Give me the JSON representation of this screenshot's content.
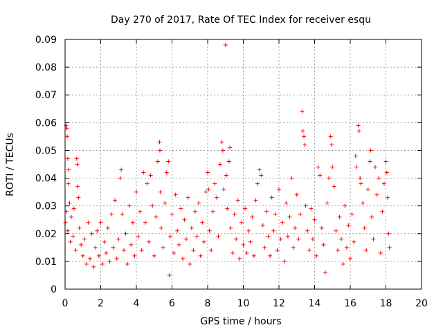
{
  "chart_data": {
    "type": "scatter",
    "title": "Day 270 of 2017, Rate Of TEC Index for receiver esqu",
    "xlabel": "GPS time / hours",
    "ylabel": "ROTI / TECUs",
    "xlim": [
      0,
      20
    ],
    "ylim": [
      0,
      0.09
    ],
    "x_ticks": [
      0,
      2,
      4,
      6,
      8,
      10,
      12,
      14,
      16,
      18,
      20
    ],
    "x_tick_labels": [
      "0",
      "2",
      "4",
      "6",
      "8",
      "10",
      "12",
      "14",
      "16",
      "18",
      "20"
    ],
    "y_ticks": [
      0,
      0.01,
      0.02,
      0.03,
      0.04,
      0.05,
      0.06,
      0.07,
      0.08,
      0.09
    ],
    "y_tick_labels": [
      "0",
      "0.01",
      "0.02",
      "0.03",
      "0.04",
      "0.05",
      "0.06",
      "0.07",
      "0.08",
      "0.09"
    ],
    "grid": true,
    "marker": "+",
    "marker_color": "#ff0000",
    "series": [
      {
        "name": "ROTI",
        "points": [
          [
            0.05,
            0.059
          ],
          [
            0.1,
            0.058
          ],
          [
            0.12,
            0.055
          ],
          [
            0.15,
            0.047
          ],
          [
            0.2,
            0.043
          ],
          [
            0.18,
            0.038
          ],
          [
            0.02,
            0.024
          ],
          [
            0.08,
            0.028
          ],
          [
            0.15,
            0.021
          ],
          [
            0.25,
            0.031
          ],
          [
            0.3,
            0.017
          ],
          [
            0.35,
            0.026
          ],
          [
            0.45,
            0.019
          ],
          [
            0.5,
            0.029
          ],
          [
            0.6,
            0.014
          ],
          [
            0.65,
            0.047
          ],
          [
            0.68,
            0.045
          ],
          [
            0.7,
            0.037
          ],
          [
            0.75,
            0.033
          ],
          [
            0.8,
            0.022
          ],
          [
            0.9,
            0.016
          ],
          [
            1.0,
            0.012
          ],
          [
            1.1,
            0.018
          ],
          [
            1.2,
            0.009
          ],
          [
            1.3,
            0.024
          ],
          [
            1.4,
            0.011
          ],
          [
            1.5,
            0.02
          ],
          [
            1.6,
            0.008
          ],
          [
            1.7,
            0.015
          ],
          [
            1.8,
            0.021
          ],
          [
            1.9,
            0.012
          ],
          [
            2.0,
            0.024
          ],
          [
            2.1,
            0.009
          ],
          [
            2.2,
            0.017
          ],
          [
            2.3,
            0.013
          ],
          [
            2.4,
            0.022
          ],
          [
            2.5,
            0.01
          ],
          [
            2.6,
            0.027
          ],
          [
            2.7,
            0.015
          ],
          [
            2.8,
            0.032
          ],
          [
            2.9,
            0.011
          ],
          [
            3.0,
            0.018
          ],
          [
            3.1,
            0.04
          ],
          [
            3.15,
            0.043
          ],
          [
            3.2,
            0.027
          ],
          [
            3.3,
            0.014
          ],
          [
            3.4,
            0.02
          ],
          [
            3.5,
            0.009
          ],
          [
            3.6,
            0.03
          ],
          [
            3.7,
            0.016
          ],
          [
            3.8,
            0.024
          ],
          [
            3.9,
            0.012
          ],
          [
            4.0,
            0.035
          ],
          [
            4.1,
            0.019
          ],
          [
            4.2,
            0.028
          ],
          [
            4.3,
            0.014
          ],
          [
            4.4,
            0.042
          ],
          [
            4.5,
            0.024
          ],
          [
            4.6,
            0.038
          ],
          [
            4.7,
            0.017
          ],
          [
            4.8,
            0.041
          ],
          [
            4.9,
            0.03
          ],
          [
            5.0,
            0.012
          ],
          [
            5.1,
            0.026
          ],
          [
            5.2,
            0.046
          ],
          [
            5.3,
            0.053
          ],
          [
            5.32,
            0.05
          ],
          [
            5.35,
            0.035
          ],
          [
            5.4,
            0.022
          ],
          [
            5.5,
            0.015
          ],
          [
            5.6,
            0.031
          ],
          [
            5.7,
            0.042
          ],
          [
            5.8,
            0.046
          ],
          [
            5.85,
            0.005
          ],
          [
            5.9,
            0.019
          ],
          [
            6.0,
            0.027
          ],
          [
            6.1,
            0.013
          ],
          [
            6.2,
            0.034
          ],
          [
            6.3,
            0.021
          ],
          [
            6.4,
            0.016
          ],
          [
            6.5,
            0.029
          ],
          [
            6.6,
            0.011
          ],
          [
            6.7,
            0.025
          ],
          [
            6.8,
            0.018
          ],
          [
            6.9,
            0.033
          ],
          [
            7.0,
            0.009
          ],
          [
            7.1,
            0.022
          ],
          [
            7.2,
            0.014
          ],
          [
            7.3,
            0.028
          ],
          [
            7.4,
            0.019
          ],
          [
            7.5,
            0.031
          ],
          [
            7.6,
            0.012
          ],
          [
            7.7,
            0.024
          ],
          [
            7.8,
            0.017
          ],
          [
            7.9,
            0.035
          ],
          [
            8.0,
            0.042
          ],
          [
            8.05,
            0.036
          ],
          [
            8.1,
            0.021
          ],
          [
            8.2,
            0.014
          ],
          [
            8.3,
            0.028
          ],
          [
            8.4,
            0.038
          ],
          [
            8.5,
            0.033
          ],
          [
            8.6,
            0.019
          ],
          [
            8.7,
            0.045
          ],
          [
            8.8,
            0.053
          ],
          [
            8.85,
            0.05
          ],
          [
            8.9,
            0.036
          ],
          [
            9.0,
            0.088
          ],
          [
            9.05,
            0.041
          ],
          [
            9.1,
            0.029
          ],
          [
            9.2,
            0.046
          ],
          [
            9.25,
            0.051
          ],
          [
            9.3,
            0.022
          ],
          [
            9.4,
            0.013
          ],
          [
            9.5,
            0.027
          ],
          [
            9.6,
            0.018
          ],
          [
            9.7,
            0.032
          ],
          [
            9.8,
            0.011
          ],
          [
            9.9,
            0.024
          ],
          [
            10.0,
            0.016
          ],
          [
            10.1,
            0.029
          ],
          [
            10.2,
            0.013
          ],
          [
            10.3,
            0.021
          ],
          [
            10.4,
            0.017
          ],
          [
            10.5,
            0.026
          ],
          [
            10.6,
            0.012
          ],
          [
            10.7,
            0.032
          ],
          [
            10.8,
            0.038
          ],
          [
            10.9,
            0.043
          ],
          [
            11.0,
            0.041
          ],
          [
            11.1,
            0.023
          ],
          [
            11.2,
            0.015
          ],
          [
            11.3,
            0.028
          ],
          [
            11.4,
            0.019
          ],
          [
            11.5,
            0.012
          ],
          [
            11.6,
            0.033
          ],
          [
            11.7,
            0.021
          ],
          [
            11.8,
            0.027
          ],
          [
            11.9,
            0.014
          ],
          [
            12.0,
            0.036
          ],
          [
            12.1,
            0.018
          ],
          [
            12.2,
            0.024
          ],
          [
            12.3,
            0.01
          ],
          [
            12.4,
            0.031
          ],
          [
            12.5,
            0.019
          ],
          [
            12.6,
            0.026
          ],
          [
            12.7,
            0.04
          ],
          [
            12.8,
            0.015
          ],
          [
            12.9,
            0.022
          ],
          [
            13.0,
            0.034
          ],
          [
            13.1,
            0.018
          ],
          [
            13.2,
            0.027
          ],
          [
            13.3,
            0.064
          ],
          [
            13.35,
            0.057
          ],
          [
            13.4,
            0.055
          ],
          [
            13.45,
            0.052
          ],
          [
            13.5,
            0.03
          ],
          [
            13.6,
            0.021
          ],
          [
            13.7,
            0.014
          ],
          [
            13.8,
            0.029
          ],
          [
            13.9,
            0.018
          ],
          [
            14.0,
            0.025
          ],
          [
            14.1,
            0.012
          ],
          [
            14.2,
            0.044
          ],
          [
            14.3,
            0.041
          ],
          [
            14.4,
            0.022
          ],
          [
            14.5,
            0.016
          ],
          [
            14.6,
            0.006
          ],
          [
            14.7,
            0.031
          ],
          [
            14.8,
            0.04
          ],
          [
            14.9,
            0.055
          ],
          [
            14.95,
            0.052
          ],
          [
            15.0,
            0.044
          ],
          [
            15.1,
            0.037
          ],
          [
            15.2,
            0.021
          ],
          [
            15.3,
            0.014
          ],
          [
            15.4,
            0.026
          ],
          [
            15.5,
            0.018
          ],
          [
            15.6,
            0.009
          ],
          [
            15.7,
            0.03
          ],
          [
            15.8,
            0.015
          ],
          [
            15.9,
            0.023
          ],
          [
            16.0,
            0.011
          ],
          [
            16.1,
            0.027
          ],
          [
            16.2,
            0.017
          ],
          [
            16.3,
            0.048
          ],
          [
            16.35,
            0.044
          ],
          [
            16.45,
            0.059
          ],
          [
            16.5,
            0.057
          ],
          [
            16.55,
            0.04
          ],
          [
            16.6,
            0.038
          ],
          [
            16.7,
            0.031
          ],
          [
            16.8,
            0.022
          ],
          [
            16.9,
            0.014
          ],
          [
            17.0,
            0.036
          ],
          [
            17.1,
            0.046
          ],
          [
            17.15,
            0.05
          ],
          [
            17.2,
            0.026
          ],
          [
            17.3,
            0.018
          ],
          [
            17.4,
            0.044
          ],
          [
            17.5,
            0.034
          ],
          [
            17.6,
            0.04
          ],
          [
            17.7,
            0.013
          ],
          [
            17.8,
            0.028
          ],
          [
            17.9,
            0.038
          ],
          [
            18.0,
            0.046
          ],
          [
            18.05,
            0.042
          ],
          [
            18.1,
            0.033
          ],
          [
            18.15,
            0.02
          ],
          [
            18.2,
            0.015
          ]
        ]
      }
    ]
  }
}
